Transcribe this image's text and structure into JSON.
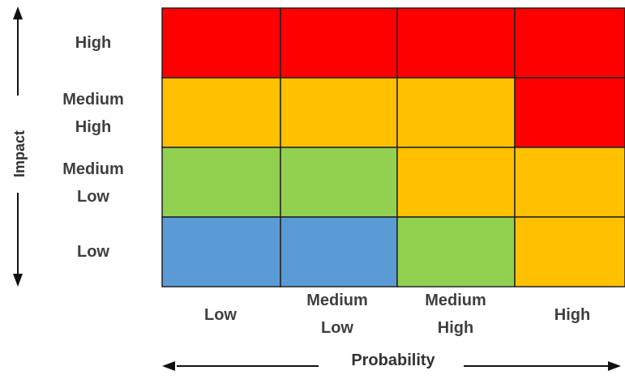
{
  "axes": {
    "y_label": "Impact",
    "x_label": "Probability"
  },
  "impact_levels": [
    "High",
    "Medium\nHigh",
    "Medium\nLow",
    "Low"
  ],
  "probability_levels": [
    "Low",
    "Medium\nLow",
    "Medium\nHigh",
    "High"
  ],
  "colors": {
    "red": "#ff0000",
    "orange": "#ffc000",
    "green": "#92d050",
    "blue": "#5b9bd5",
    "border": "#222222",
    "arrow": "#111111"
  },
  "grid": [
    [
      "red",
      "red",
      "red",
      "red"
    ],
    [
      "orange",
      "orange",
      "orange",
      "red"
    ],
    [
      "green",
      "green",
      "orange",
      "orange"
    ],
    [
      "blue",
      "blue",
      "green",
      "orange"
    ]
  ]
}
